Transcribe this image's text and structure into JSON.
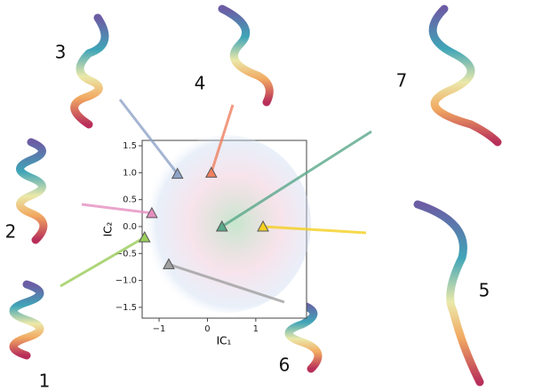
{
  "chart_data": {
    "type": "scatter",
    "x_label": "IC₁",
    "y_label": "IC₂",
    "xlim": [
      -1.35,
      2.05
    ],
    "ylim": [
      -1.7,
      1.6
    ],
    "xticks": [
      {
        "value": -1,
        "label": "−1"
      },
      0,
      1
    ],
    "yticks": [
      {
        "value": -1.5,
        "label": "−1.5"
      },
      {
        "value": -1,
        "label": "−1.0"
      },
      {
        "value": -0.5,
        "label": "−0.5"
      },
      {
        "value": 0,
        "label": "0.0"
      },
      0.5,
      {
        "value": 1,
        "label": "1.0"
      },
      1.5
    ],
    "points": [
      {
        "label": "1",
        "x": -1.3,
        "y": -0.2,
        "color": "#9acd5a"
      },
      {
        "label": "2",
        "x": -1.15,
        "y": 0.25,
        "color": "#e58fc0"
      },
      {
        "label": "3",
        "x": -0.62,
        "y": 0.98,
        "color": "#8fa3c8"
      },
      {
        "label": "4",
        "x": 0.08,
        "y": 1.0,
        "color": "#f08060"
      },
      {
        "label": "5",
        "x": 1.15,
        "y": 0.0,
        "color": "#f5d020"
      },
      {
        "label": "6",
        "x": -0.8,
        "y": -0.7,
        "color": "#a0a0a0"
      },
      {
        "label": "7",
        "x": 0.3,
        "y": 0.0,
        "color": "#5aa88a"
      }
    ]
  }
}
